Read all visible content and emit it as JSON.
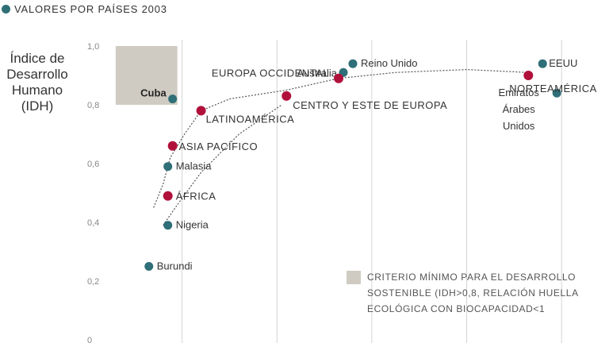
{
  "header": {
    "title": "VALORES POR PAÍSES 2003"
  },
  "colors": {
    "country": "#2f6f78",
    "region": "#b0103a",
    "zone": "#cfcbc2",
    "grid": "#d4d4d4",
    "text": "#333333"
  },
  "chart_data": {
    "type": "scatter",
    "title": "VALORES POR PAÍSES 2003",
    "ylabel": "Índice de Desarrollo Humano (IDH)",
    "xlabel": "",
    "ylim": [
      0,
      1.0
    ],
    "yticks": [
      "0",
      "0,2",
      "0,4",
      "0,6",
      "0,8",
      "1,0"
    ],
    "grid": true,
    "countries": [
      {
        "label": "Reino Unido",
        "x": 5.6,
        "y": 0.94
      },
      {
        "label": "EEUU",
        "x": 9.6,
        "y": 0.94
      },
      {
        "label": "Australia",
        "x": 5.4,
        "y": 0.91
      },
      {
        "label": "Cuba",
        "x": 1.8,
        "y": 0.82
      },
      {
        "label": "Emiratos Árabes Unidos",
        "x": 9.9,
        "y": 0.84
      },
      {
        "label": "Malasia",
        "x": 1.7,
        "y": 0.59
      },
      {
        "label": "Nigeria",
        "x": 1.7,
        "y": 0.39
      },
      {
        "label": "Burundi",
        "x": 1.3,
        "y": 0.25
      }
    ],
    "regions": [
      {
        "label": "EUROPA OCCIDENTAL",
        "x": 5.3,
        "y": 0.89
      },
      {
        "label": "NORTEAMÉRICA",
        "x": 9.3,
        "y": 0.9
      },
      {
        "label": "CENTRO Y ESTE DE EUROPA",
        "x": 4.2,
        "y": 0.83
      },
      {
        "label": "LATINOAMÉRICA",
        "x": 2.4,
        "y": 0.78
      },
      {
        "label": "ASIA PACÍFICO",
        "x": 1.8,
        "y": 0.66
      },
      {
        "label": "ÁFRICA",
        "x": 1.7,
        "y": 0.49
      }
    ],
    "legend": {
      "zone_label": [
        "CRITERIO MÍNIMO PARA EL DESARROLLO",
        "SOSTENIBLE (IDH>0,8, RELACIÓN HUELLA",
        "ECOLÓGICA CON BIOCAPACIDAD<1"
      ],
      "position": "bottom-right"
    },
    "sustainable_zone": {
      "x_min": 0.6,
      "x_max": 1.9,
      "y_min": 0.8,
      "y_max": 1.0
    }
  }
}
